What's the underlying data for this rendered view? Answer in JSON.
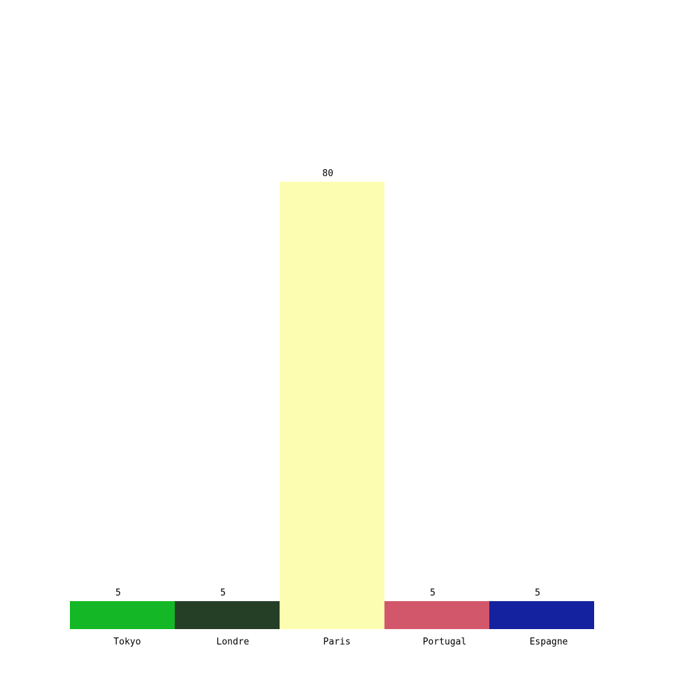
{
  "chart_data": {
    "type": "bar",
    "categories": [
      "Tokyo",
      "Londre",
      "Paris",
      "Portugal",
      "Espagne"
    ],
    "values": [
      5,
      5,
      80,
      5,
      5
    ],
    "colors": [
      "#14b826",
      "#253f26",
      "#fcfdb0",
      "#d3576b",
      "#15229f"
    ],
    "title": "",
    "xlabel": "",
    "ylabel": "",
    "ylim": [
      0,
      80
    ],
    "grid": false,
    "legend": "none"
  }
}
